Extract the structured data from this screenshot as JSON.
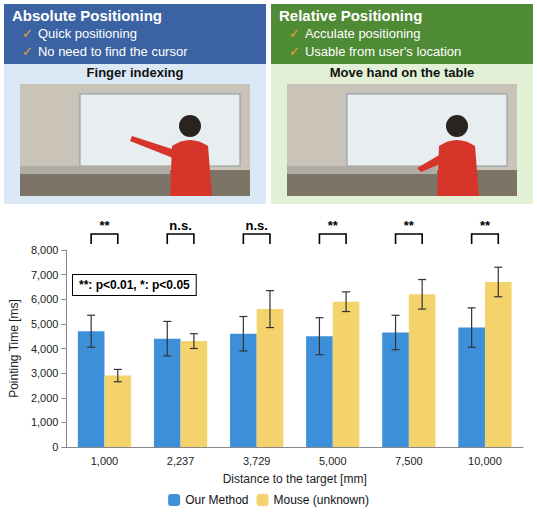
{
  "panels": [
    {
      "title": "Absolute Positioning",
      "check": "✓",
      "items": [
        "Quick positioning",
        "No need to find the cursor"
      ],
      "caption": "Finger indexing"
    },
    {
      "title": "Relative Positioning",
      "check": "✓",
      "items": [
        "Acculate positioning",
        "Usable from user's location"
      ],
      "caption": "Move hand on the table"
    }
  ],
  "chart_data": {
    "type": "bar",
    "categories": [
      "1,000",
      "2,237",
      "3,729",
      "5,000",
      "7,500",
      "10,000"
    ],
    "x_label": "Distance to the target [mm]",
    "y_label": "Pointing Time [ms]",
    "series": [
      {
        "name": "Our Method",
        "color": "#3d8fd9",
        "values": [
          4700,
          4400,
          4600,
          4500,
          4650,
          4850
        ],
        "errors": [
          650,
          700,
          700,
          750,
          700,
          800
        ]
      },
      {
        "name": "Mouse (unknown)",
        "color": "#f4d36c",
        "values": [
          2900,
          4300,
          5600,
          5900,
          6200,
          6700
        ],
        "errors": [
          250,
          300,
          750,
          400,
          600,
          600
        ]
      }
    ],
    "significance": [
      "**",
      "n.s.",
      "n.s.",
      "**",
      "**",
      "**"
    ],
    "annotation": "**: p<0.01, *: p<0.05",
    "ylim": [
      0,
      8000
    ],
    "yticks": [
      0,
      {
        "value": 1000,
        "label": "1,000"
      },
      {
        "value": 2000,
        "label": "2,000"
      },
      {
        "value": 3000,
        "label": "3,000"
      },
      {
        "value": 4000,
        "label": "4,000"
      },
      {
        "value": 5000,
        "label": "5,000"
      },
      {
        "value": 6000,
        "label": "6,000"
      },
      {
        "value": 7000,
        "label": "7,000"
      },
      {
        "value": 8000,
        "label": "8,000"
      }
    ],
    "grid": false,
    "legend": "bottom"
  }
}
